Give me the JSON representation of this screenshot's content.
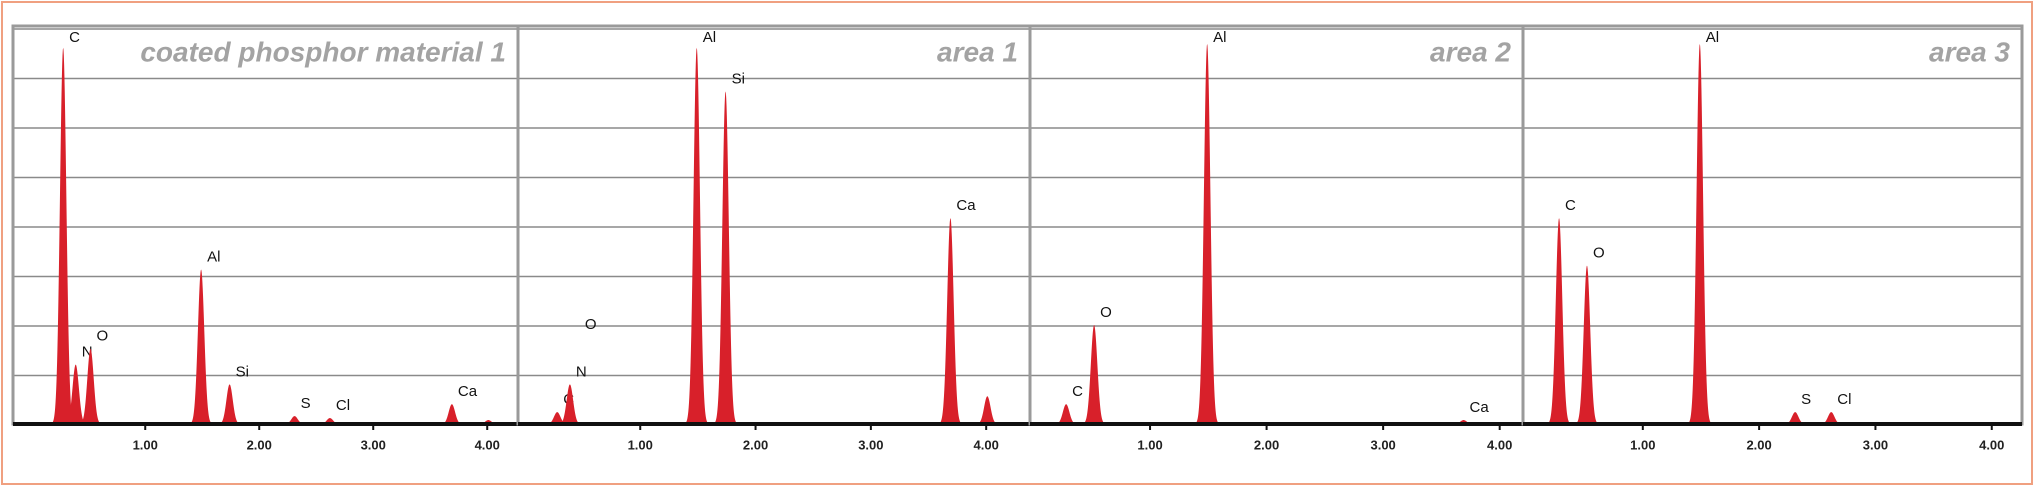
{
  "chart_data": [
    {
      "type": "spectrum",
      "title": "coated phosphor material 1",
      "color": "#d8202a",
      "x": [
        0.28,
        0.39,
        0.52,
        1.49,
        1.74,
        2.31,
        2.62,
        3.69,
        4.01
      ],
      "values": [
        95,
        15,
        19,
        39,
        10,
        2,
        1.5,
        5,
        1
      ],
      "annotations": [
        "C",
        "N",
        "O",
        "Al",
        "Si",
        "S",
        "Cl",
        "Ca",
        null
      ],
      "xlim": [
        -0.16,
        4.27
      ],
      "xticks": [
        {
          "value": 1,
          "label": "1.00"
        },
        {
          "value": 2,
          "label": "2.00"
        },
        {
          "value": 3,
          "label": "3.00"
        },
        {
          "value": 4,
          "label": "4.00"
        }
      ],
      "ylim": [
        0,
        100
      ],
      "grid": true
    },
    {
      "type": "spectrum",
      "title": "area 1",
      "color": "#d8202a",
      "x": [
        0.28,
        0.39,
        1.49,
        1.74,
        3.69,
        4.01
      ],
      "values": [
        3,
        10,
        95,
        84,
        52,
        7
      ],
      "annotations": [
        "C",
        "N",
        "Al",
        "Si",
        "Ca",
        null
      ],
      "xlim": [
        -0.06,
        4.38
      ],
      "xticks": [
        {
          "value": 1,
          "label": "1.00"
        },
        {
          "value": 2,
          "label": "2.00"
        },
        {
          "value": 3,
          "label": "3.00"
        },
        {
          "value": 4,
          "label": "4.00"
        }
      ],
      "ylim": [
        0,
        100
      ],
      "grid": true,
      "extra_labels": [
        "O"
      ]
    },
    {
      "type": "spectrum",
      "title": "area 2",
      "color": "#d8202a",
      "x": [
        0.28,
        0.52,
        1.49,
        3.69
      ],
      "values": [
        5,
        25,
        96,
        1
      ],
      "annotations": [
        "C",
        "O",
        "Al",
        "Ca"
      ],
      "xlim": [
        -0.03,
        4.2
      ],
      "xticks": [
        {
          "value": 1,
          "label": "1.00"
        },
        {
          "value": 2,
          "label": "2.00"
        },
        {
          "value": 3,
          "label": "3.00"
        },
        {
          "value": 4,
          "label": "4.00"
        }
      ],
      "ylim": [
        0,
        100
      ],
      "grid": true
    },
    {
      "type": "spectrum",
      "title": "area 3",
      "color": "#d8202a",
      "x": [
        0.28,
        0.52,
        1.49,
        2.31,
        2.62
      ],
      "values": [
        52,
        40,
        96,
        3,
        3
      ],
      "annotations": [
        "C",
        "O",
        "Al",
        "S",
        "Cl"
      ],
      "xlim": [
        -0.03,
        4.26
      ],
      "xticks": [
        {
          "value": 1,
          "label": "1.00"
        },
        {
          "value": 2,
          "label": "2.00"
        },
        {
          "value": 3,
          "label": "3.00"
        },
        {
          "value": 4,
          "label": "4.00"
        }
      ],
      "ylim": [
        0,
        100
      ],
      "grid": true
    }
  ]
}
